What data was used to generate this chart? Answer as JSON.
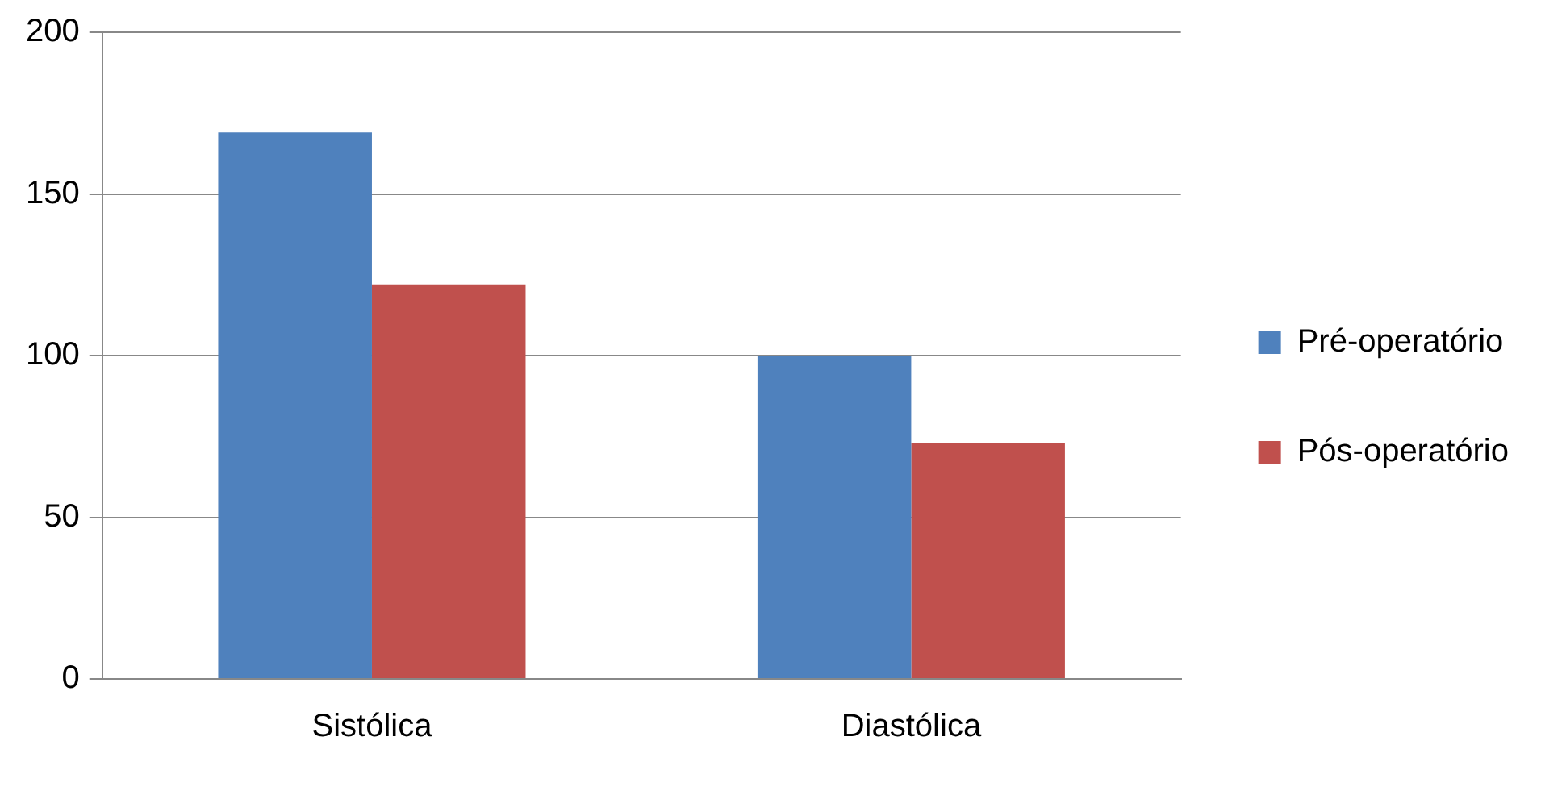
{
  "chart_data": {
    "type": "bar",
    "categories": [
      "Sistólica",
      "Diastólica"
    ],
    "series": [
      {
        "name": "Pré-operatório",
        "color": "#4f81bd",
        "values": [
          169,
          100
        ]
      },
      {
        "name": "Pós-operatório",
        "color": "#c0504d",
        "values": [
          122,
          73
        ]
      }
    ],
    "ylim": [
      0,
      200
    ],
    "yticks": [
      0,
      50,
      100,
      150,
      200
    ],
    "grid": "y",
    "legend": "right"
  }
}
